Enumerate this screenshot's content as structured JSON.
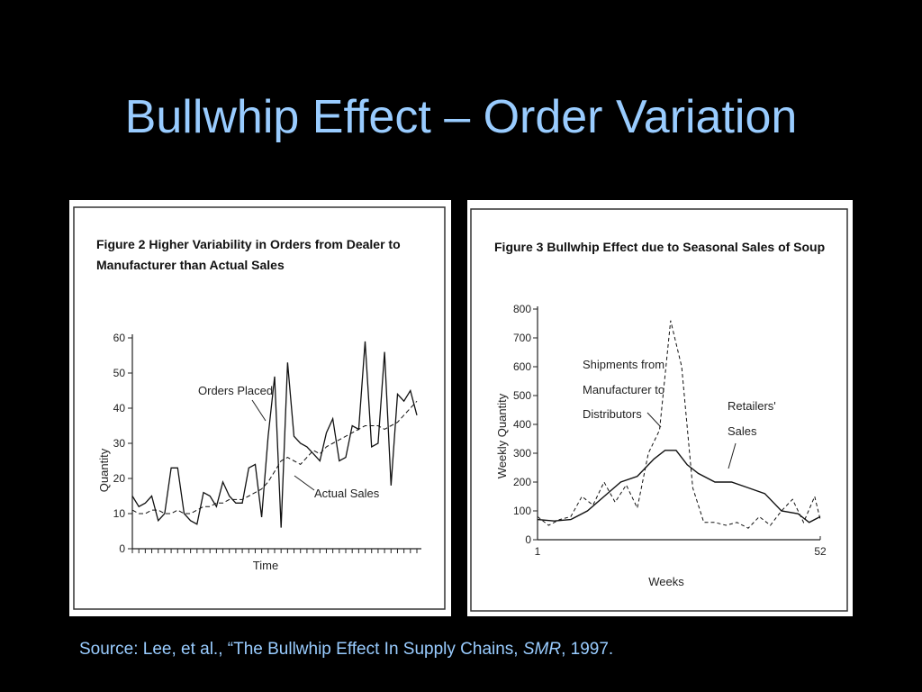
{
  "slide": {
    "title": "Bullwhip Effect – Order Variation",
    "source_prefix": "Source: Lee, et al., “The Bullwhip Effect In Supply Chains, ",
    "source_italic": "SMR",
    "source_suffix": ", 1997.",
    "title_color": "#99ccff"
  },
  "chart_data": [
    {
      "type": "line",
      "title_line1": "Figure 2   Higher Variability in Orders from Dealer to",
      "title_line2": "Manufacturer than Actual Sales",
      "xlabel": "Time",
      "ylabel": "Quantity",
      "ylim": [
        0,
        60
      ],
      "yticks": [
        "0",
        "10",
        "20",
        "30",
        "40",
        "50",
        "60"
      ],
      "annotations": [
        "Orders Placed",
        "Actual Sales"
      ],
      "x_count": 45,
      "series": [
        {
          "name": "Orders Placed",
          "style": "solid",
          "values": [
            15,
            12,
            13,
            15,
            8,
            10,
            23,
            23,
            10,
            8,
            7,
            16,
            15,
            12,
            19,
            15,
            13,
            13,
            23,
            24,
            9,
            32,
            49,
            6,
            53,
            32,
            30,
            29,
            27,
            25,
            33,
            37,
            25,
            26,
            35,
            34,
            59,
            29,
            30,
            56,
            18,
            44,
            42,
            45,
            38
          ]
        },
        {
          "name": "Actual Sales",
          "style": "dashed",
          "values": [
            11,
            10,
            10,
            11,
            11,
            10,
            10,
            11,
            10,
            10,
            11,
            12,
            12,
            13,
            13,
            14,
            14,
            14,
            15,
            16,
            17,
            19,
            22,
            25,
            26,
            25,
            24,
            26,
            28,
            27,
            29,
            30,
            31,
            32,
            33,
            34,
            35,
            35,
            35,
            34,
            35,
            36,
            38,
            40,
            42
          ]
        }
      ]
    },
    {
      "type": "line",
      "title": "Figure 3   Bullwhip Effect due to Seasonal Sales of Soup",
      "xlabel": "Weeks",
      "ylabel": "Weekly Quantity",
      "xlim": [
        1,
        52
      ],
      "xticks": [
        "1",
        "52"
      ],
      "ylim": [
        0,
        800
      ],
      "yticks": [
        "0",
        "100",
        "200",
        "300",
        "400",
        "500",
        "600",
        "700",
        "800"
      ],
      "annotations": [
        "Shipments from",
        "Manufacturer to",
        "Distributors",
        "Retailers'",
        "Sales"
      ],
      "series": [
        {
          "name": "Retailers' Sales",
          "style": "solid",
          "x": [
            1,
            4,
            7,
            10,
            13,
            16,
            19,
            22,
            24,
            26,
            28,
            30,
            33,
            36,
            39,
            42,
            45,
            48,
            50,
            52
          ],
          "values": [
            70,
            65,
            70,
            100,
            150,
            200,
            220,
            280,
            310,
            310,
            260,
            230,
            200,
            200,
            180,
            160,
            100,
            90,
            60,
            80
          ]
        },
        {
          "name": "Shipments from Manufacturer to Distributors",
          "style": "dashed",
          "x": [
            1,
            3,
            5,
            7,
            9,
            11,
            13,
            15,
            17,
            19,
            21,
            23,
            25,
            27,
            29,
            31,
            33,
            35,
            37,
            39,
            41,
            43,
            45,
            47,
            49,
            51,
            52
          ],
          "values": [
            80,
            50,
            70,
            80,
            150,
            120,
            200,
            130,
            190,
            110,
            300,
            380,
            760,
            600,
            180,
            60,
            60,
            50,
            60,
            40,
            80,
            50,
            100,
            140,
            60,
            150,
            70
          ]
        }
      ]
    }
  ]
}
